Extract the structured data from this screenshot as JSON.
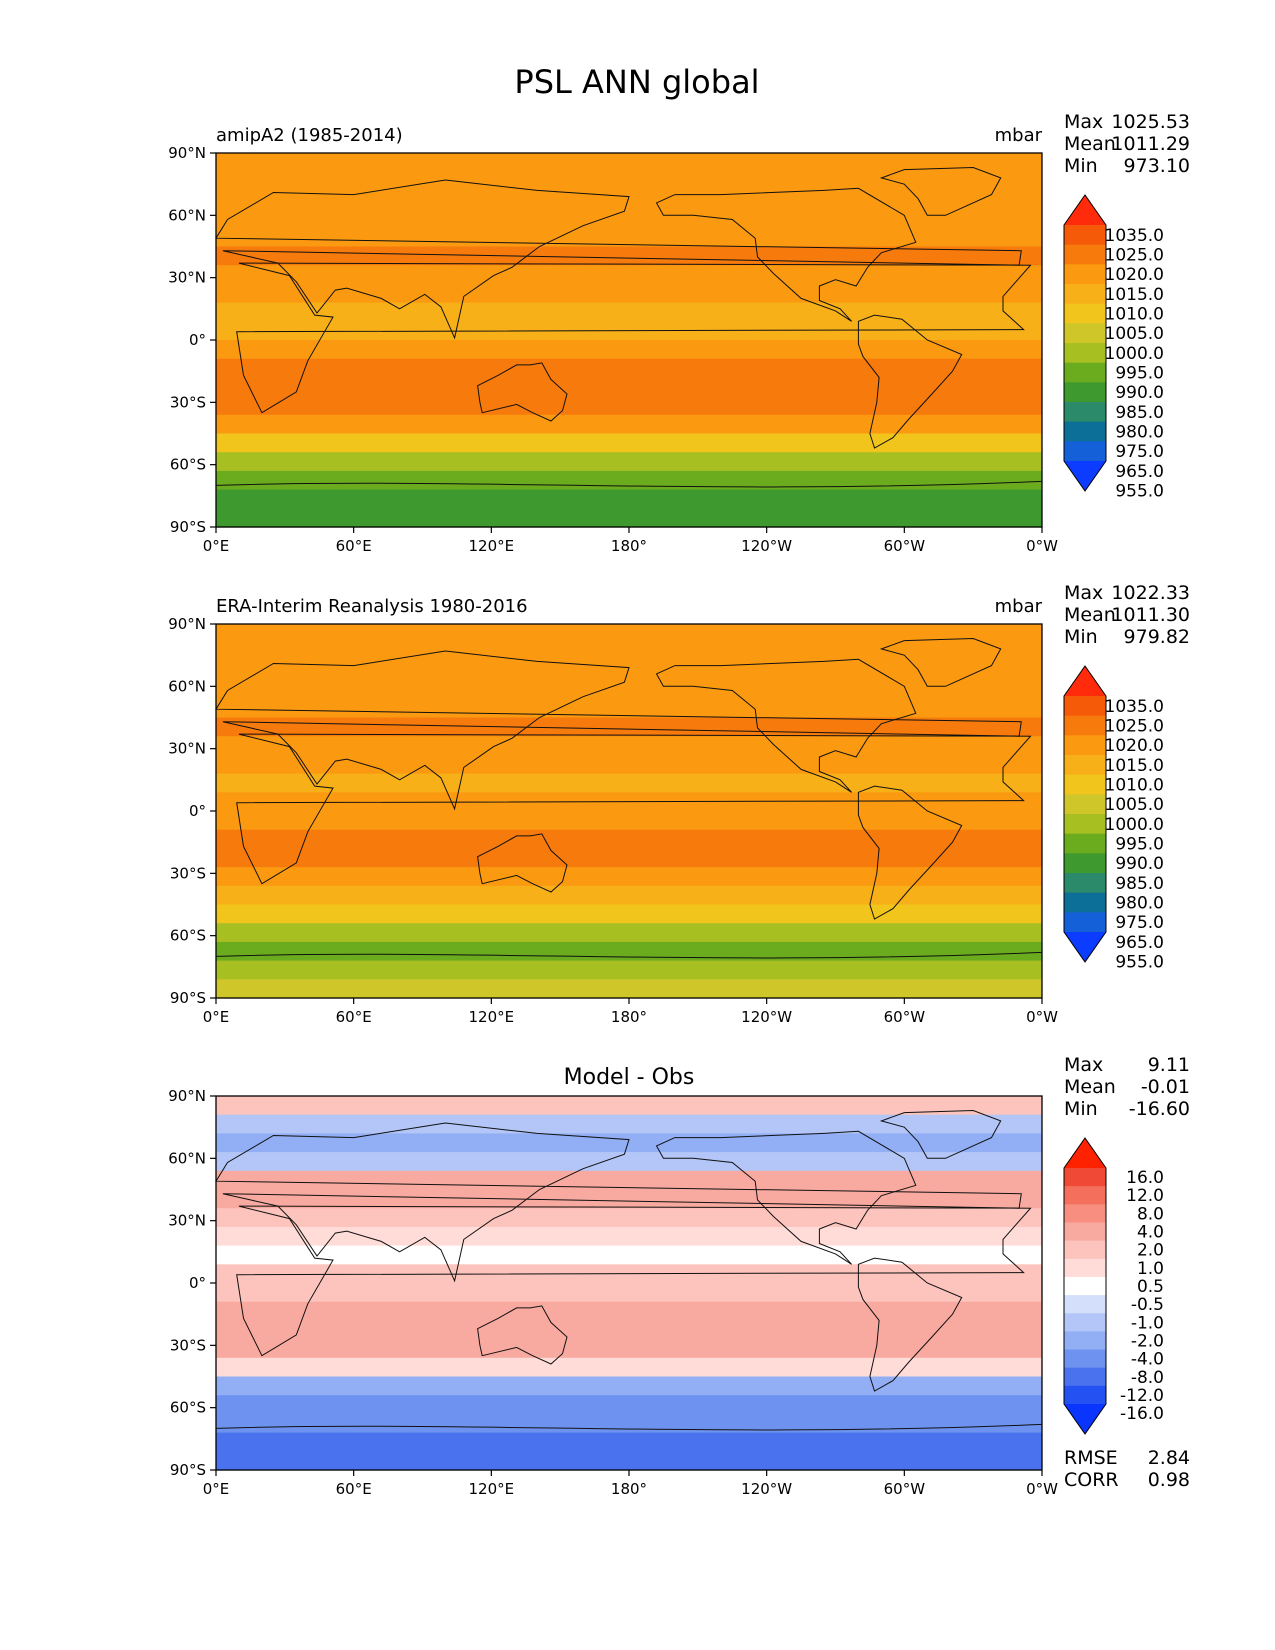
{
  "figure": {
    "title": "PSL ANN global",
    "x_ticks": [
      "0°E",
      "60°E",
      "120°E",
      "180°",
      "120°W",
      "60°W",
      "0°W"
    ],
    "y_ticks": [
      "90°N",
      "60°N",
      "30°N",
      "0°",
      "30°S",
      "60°S",
      "90°S"
    ]
  },
  "colors": {
    "field_levels": [
      "#0b3cff",
      "#1460d8",
      "#0c6f98",
      "#2a8a6a",
      "#3e9a2e",
      "#6aac1e",
      "#a8bf22",
      "#cfc62a",
      "#f2c51c",
      "#f8b018",
      "#fb9a10",
      "#f77a0c",
      "#f55a08",
      "#ff2b0a"
    ],
    "diff_levels": [
      "#0a35ff",
      "#2452f2",
      "#4a72ee",
      "#6e92f0",
      "#92aef5",
      "#b3c6f7",
      "#d4e0fb",
      "#ffffff",
      "#ffdcd8",
      "#fcc4bc",
      "#f9aaa0",
      "#f78e80",
      "#f46f5c",
      "#f04a36",
      "#ff2200"
    ]
  },
  "panels": [
    {
      "left_title": "amipA2 (1985-2014)",
      "center_title": "",
      "units": "mbar",
      "stats": {
        "max_label": "Max",
        "max_value": "1025.53",
        "mean_label": "Mean",
        "mean_value": "1011.29",
        "min_label": "Min",
        "min_value": "973.10"
      },
      "colorbar_labels": [
        "1035.0",
        "1025.0",
        "1020.0",
        "1015.0",
        "1010.0",
        "1005.0",
        "1000.0",
        "995.0",
        "990.0",
        "985.0",
        "980.0",
        "975.0",
        "965.0",
        "955.0"
      ],
      "map_type": "field",
      "profile": [
        1010,
        1012,
        1013,
        1011,
        1013,
        1016,
        1013,
        1010,
        1008,
        1009,
        1013,
        1018,
        1019,
        1016,
        1010,
        1000,
        990,
        985,
        984,
        983
      ]
    },
    {
      "left_title": "ERA-Interim Reanalysis 1980-2016",
      "center_title": "",
      "units": "mbar",
      "stats": {
        "max_label": "Max",
        "max_value": "1022.33",
        "mean_label": "Mean",
        "mean_value": "1011.30",
        "min_label": "Min",
        "min_value": "979.82"
      },
      "colorbar_labels": [
        "1035.0",
        "1025.0",
        "1020.0",
        "1015.0",
        "1010.0",
        "1005.0",
        "1000.0",
        "995.0",
        "990.0",
        "985.0",
        "980.0",
        "975.0",
        "965.0",
        "955.0"
      ],
      "map_type": "field",
      "profile": [
        1011,
        1012,
        1013,
        1012,
        1013,
        1015,
        1013,
        1011,
        1009,
        1010,
        1013,
        1016,
        1017,
        1014,
        1009,
        1000,
        992,
        988,
        990,
        995
      ]
    },
    {
      "left_title": "",
      "center_title": "Model - Obs",
      "units": "",
      "stats": {
        "max_label": "Max",
        "max_value": "9.11",
        "mean_label": "Mean",
        "mean_value": "-0.01",
        "min_label": "Min",
        "min_value": "-16.60"
      },
      "colorbar_labels": [
        "16.0",
        "12.0",
        "8.0",
        "4.0",
        "2.0",
        "1.0",
        "0.5",
        "-0.5",
        "-1.0",
        "-2.0",
        "-4.0",
        "-8.0",
        "-12.0",
        "-16.0"
      ],
      "map_type": "difference",
      "extra_stats": {
        "rmse_label": "RMSE",
        "rmse_value": "2.84",
        "corr_label": "CORR",
        "corr_value": "0.98"
      },
      "profile": [
        1.5,
        -2.0,
        -3.0,
        -1.5,
        2.0,
        3.0,
        1.5,
        0.5,
        0.3,
        1.0,
        1.5,
        2.0,
        2.5,
        2.0,
        0.5,
        -3.0,
        -6.0,
        -8.0,
        -10.0,
        -12.0
      ]
    }
  ]
}
